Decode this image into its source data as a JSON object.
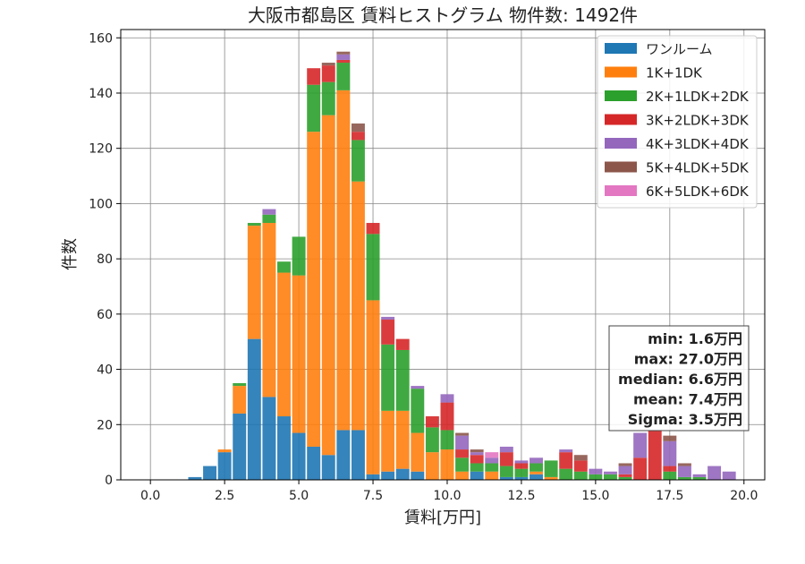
{
  "chart_data": {
    "type": "bar",
    "stacked": true,
    "title": "大阪市都島区 賃料ヒストグラム 物件数: 1492件",
    "xlabel": "賃料[万円]",
    "ylabel": "件数",
    "xlim": [
      -1.0,
      20.7
    ],
    "ylim": [
      0,
      163
    ],
    "xticks": [
      "0.0",
      "2.5",
      "5.0",
      "7.5",
      "10.0",
      "12.5",
      "15.0",
      "17.5",
      "20.0"
    ],
    "yticks": [
      "0",
      "20",
      "40",
      "60",
      "80",
      "100",
      "120",
      "140",
      "160"
    ],
    "grid": true,
    "legend_position": "top-right",
    "bin_width": 0.5,
    "x": [
      1.5,
      2.0,
      2.5,
      3.0,
      3.5,
      4.0,
      4.5,
      5.0,
      5.5,
      6.0,
      6.5,
      7.0,
      7.5,
      8.0,
      8.5,
      9.0,
      9.5,
      10.0,
      10.5,
      11.0,
      11.5,
      12.0,
      12.5,
      13.0,
      13.5,
      14.0,
      14.5,
      15.0,
      15.5,
      16.0,
      16.5,
      17.0,
      17.5,
      18.0,
      18.5,
      19.0,
      19.5
    ],
    "series": [
      {
        "name": "ワンルーム",
        "color": "#1f77b4",
        "values": [
          1,
          5,
          10,
          24,
          51,
          30,
          23,
          17,
          12,
          9,
          18,
          18,
          2,
          3,
          4,
          3,
          0,
          0,
          0,
          3,
          0,
          1,
          1,
          2,
          0,
          0,
          0,
          0,
          0,
          0,
          0,
          0,
          0,
          0,
          0,
          0,
          0
        ]
      },
      {
        "name": "1K+1DK",
        "color": "#ff7f0e",
        "values": [
          0,
          0,
          1,
          10,
          41,
          63,
          52,
          57,
          114,
          123,
          123,
          90,
          63,
          22,
          21,
          14,
          10,
          11,
          3,
          0,
          3,
          0,
          0,
          1,
          1,
          0,
          0,
          0,
          0,
          0,
          0,
          0,
          0,
          0,
          0,
          0,
          0
        ]
      },
      {
        "name": "2K+1LDK+2DK",
        "color": "#2ca02c",
        "values": [
          0,
          0,
          0,
          1,
          1,
          3,
          4,
          14,
          17,
          12,
          10,
          15,
          24,
          24,
          22,
          16,
          9,
          7,
          5,
          3,
          3,
          4,
          3,
          3,
          6,
          4,
          3,
          2,
          2,
          1,
          0,
          0,
          3,
          1,
          1,
          0,
          0
        ]
      },
      {
        "name": "3K+2LDK+3DK",
        "color": "#d62728",
        "values": [
          0,
          0,
          0,
          0,
          0,
          0,
          0,
          0,
          6,
          6,
          1,
          3,
          4,
          9,
          4,
          0,
          4,
          10,
          3,
          3,
          0,
          5,
          2,
          0,
          0,
          6,
          4,
          0,
          0,
          1,
          8,
          18,
          2,
          0,
          0,
          0,
          0
        ]
      },
      {
        "name": "4K+3LDK+4DK",
        "color": "#9467bd",
        "values": [
          0,
          0,
          0,
          0,
          0,
          2,
          0,
          0,
          0,
          0,
          2,
          0,
          0,
          1,
          0,
          1,
          0,
          3,
          5,
          1,
          2,
          2,
          1,
          2,
          0,
          1,
          0,
          2,
          1,
          3,
          9,
          0,
          9,
          4,
          1,
          5,
          3
        ]
      },
      {
        "name": "5K+4LDK+5DK",
        "color": "#8c564b",
        "values": [
          0,
          0,
          0,
          0,
          0,
          0,
          0,
          0,
          0,
          1,
          1,
          3,
          0,
          0,
          0,
          0,
          0,
          0,
          1,
          1,
          0,
          0,
          0,
          0,
          0,
          0,
          2,
          0,
          0,
          1,
          0,
          0,
          2,
          1,
          0,
          0,
          0
        ]
      },
      {
        "name": "6K+5LDK+6DK",
        "color": "#e377c2",
        "values": [
          0,
          0,
          0,
          0,
          0,
          0,
          0,
          0,
          0,
          0,
          0,
          0,
          0,
          0,
          0,
          0,
          0,
          0,
          0,
          0,
          2,
          0,
          0,
          0,
          0,
          0,
          0,
          0,
          0,
          0,
          0,
          0,
          0,
          0,
          0,
          0,
          0
        ]
      }
    ],
    "stats": [
      "min: 1.6万円",
      "max: 27.0万円",
      "median: 6.6万円",
      "mean: 7.4万円",
      "Sigma: 3.5万円"
    ]
  }
}
